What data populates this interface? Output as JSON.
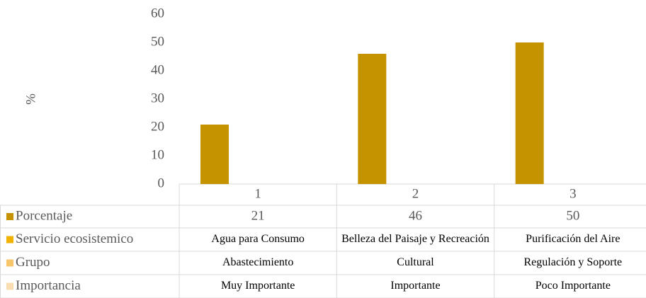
{
  "chart_data": {
    "type": "bar",
    "y_label": "%",
    "categories": [
      "1",
      "2",
      "3"
    ],
    "series": [
      {
        "name": "Porcentaje",
        "color": "#c59300",
        "values": [
          21,
          46,
          50
        ]
      }
    ],
    "ylim": [
      0,
      60
    ],
    "yticks": [
      0,
      10,
      20,
      30,
      40,
      50,
      60
    ],
    "grid": false,
    "data_table": [
      {
        "name": "Servicio ecosistemico",
        "color": "#f2b300",
        "cells": [
          "Agua para Consumo",
          "Belleza del Paisaje y Recreación",
          "Purificación del Aire"
        ]
      },
      {
        "name": "Grupo",
        "color": "#f8c66a",
        "cells": [
          "Abastecimiento",
          "Cultural",
          "Regulación y Soporte"
        ]
      },
      {
        "name": "Importancia",
        "color": "#f9dcb0",
        "cells": [
          "Muy Importante",
          "Importante",
          "Poco Importante"
        ]
      }
    ]
  }
}
